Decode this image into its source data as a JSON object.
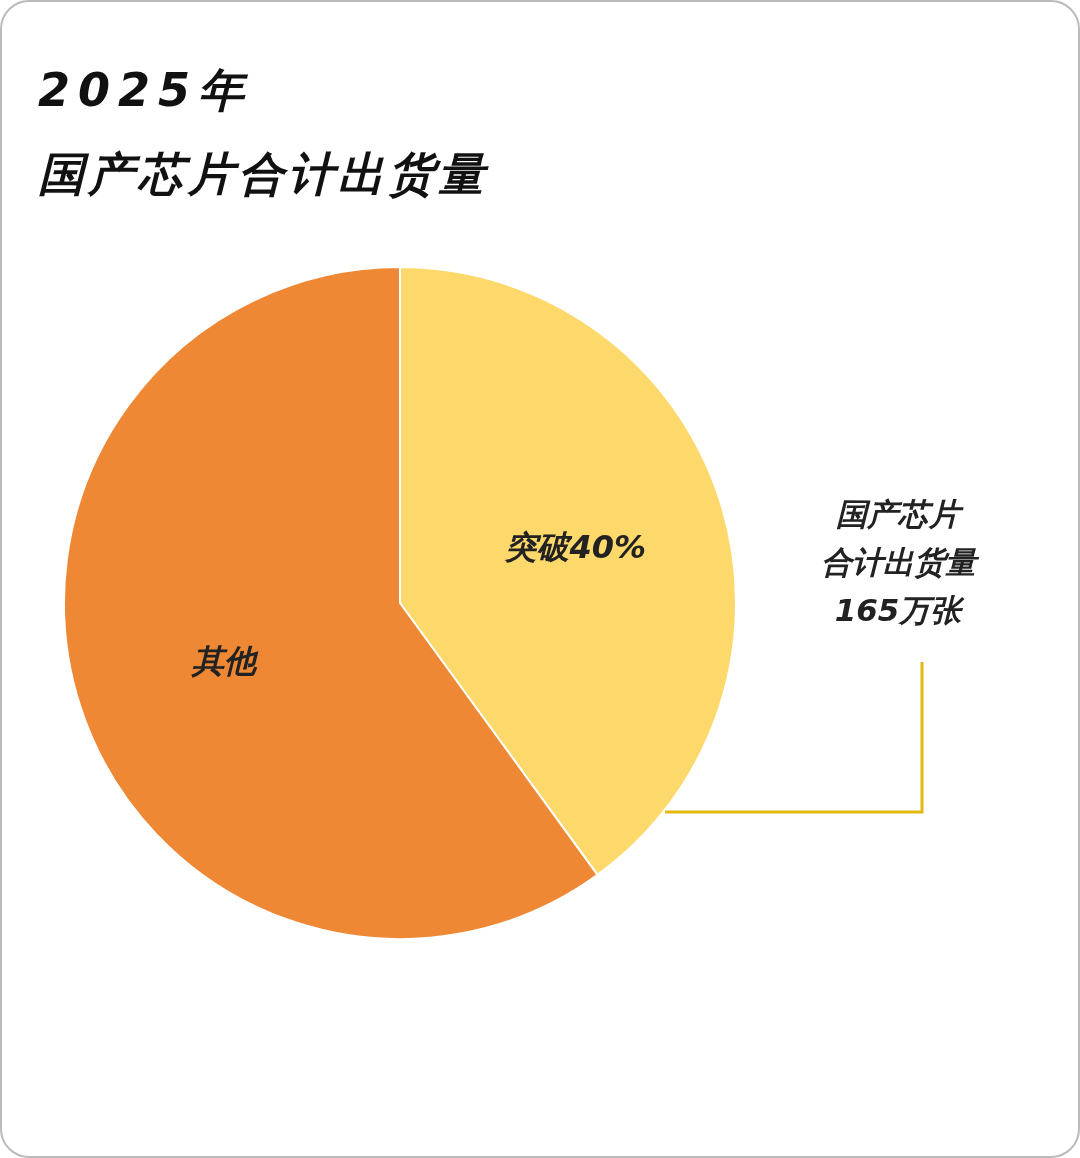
{
  "chart_data": {
    "type": "pie",
    "title": "2025年",
    "subtitle": "国产芯片合计出货量",
    "categories": [
      null,
      "其他"
    ],
    "values": [
      40,
      60
    ],
    "colors": [
      "#fcd96a",
      "#ee8834"
    ],
    "value_labels": [
      "突破40%",
      null
    ],
    "annotations": [
      "国产芯片",
      "合计出货量",
      "165万张"
    ]
  }
}
